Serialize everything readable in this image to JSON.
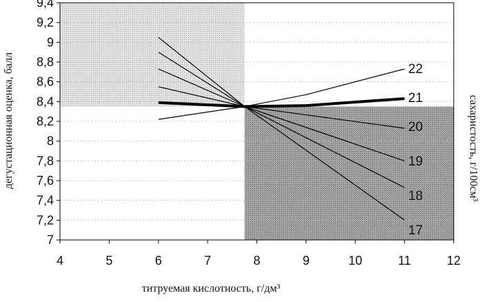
{
  "chart_data": {
    "type": "line",
    "xlabel": "титруемая кислотность, г/дм³",
    "ylabel": "дегустационная оценка, балл",
    "y2label": "сахаристость, г/100см³",
    "xlim": [
      4,
      12
    ],
    "ylim": [
      7,
      9.4
    ],
    "x_ticks": [
      "4",
      "5",
      "6",
      "7",
      "8",
      "9",
      "10",
      "11",
      "12"
    ],
    "y_ticks": [
      "7",
      "7,2",
      "7,4",
      "7,6",
      "7,8",
      "8",
      "8,2",
      "8,4",
      "8,6",
      "8,8",
      "9",
      "9,2",
      "9,4"
    ],
    "grid": true,
    "regions": [
      {
        "x": [
          4,
          7.75
        ],
        "y": [
          8.35,
          9.4
        ],
        "shade": "light"
      },
      {
        "x": [
          7.75,
          12
        ],
        "y": [
          7,
          8.35
        ],
        "shade": "dark"
      }
    ],
    "series": [
      {
        "name": "17",
        "x": [
          6,
          7.75,
          11
        ],
        "y": [
          9.05,
          8.35,
          7.2
        ]
      },
      {
        "name": "18",
        "x": [
          6,
          7.75,
          11
        ],
        "y": [
          8.9,
          8.35,
          7.53
        ]
      },
      {
        "name": "19",
        "x": [
          6,
          7.75,
          11
        ],
        "y": [
          8.73,
          8.35,
          7.8
        ]
      },
      {
        "name": "20",
        "x": [
          6,
          7.75,
          11
        ],
        "y": [
          8.55,
          8.35,
          8.13
        ]
      },
      {
        "name": "21",
        "x": [
          6,
          7.75,
          9,
          11
        ],
        "y": [
          8.39,
          8.35,
          8.36,
          8.43
        ],
        "bold": true
      },
      {
        "name": "22",
        "x": [
          6,
          7.75,
          9,
          11
        ],
        "y": [
          8.22,
          8.35,
          8.47,
          8.73
        ]
      }
    ],
    "colors": {
      "line": "#000000",
      "light_region": "#d0d0d0",
      "dark_region": "#8e8e8e"
    }
  }
}
